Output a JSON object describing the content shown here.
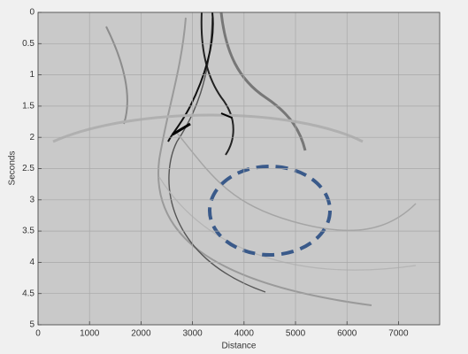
{
  "chart_data": {
    "type": "image",
    "xlabel": "Distance",
    "ylabel": "Seconds",
    "xlim": [
      0,
      7800
    ],
    "xticks": [
      0,
      1000,
      2000,
      3000,
      4000,
      5000,
      6000,
      7000
    ],
    "ylim": [
      0,
      5
    ],
    "yticks": [
      0,
      0.5,
      1,
      1.5,
      2,
      2.5,
      3,
      3.5,
      4,
      4.5,
      5
    ],
    "y_reversed": true,
    "grid": true
  }
}
